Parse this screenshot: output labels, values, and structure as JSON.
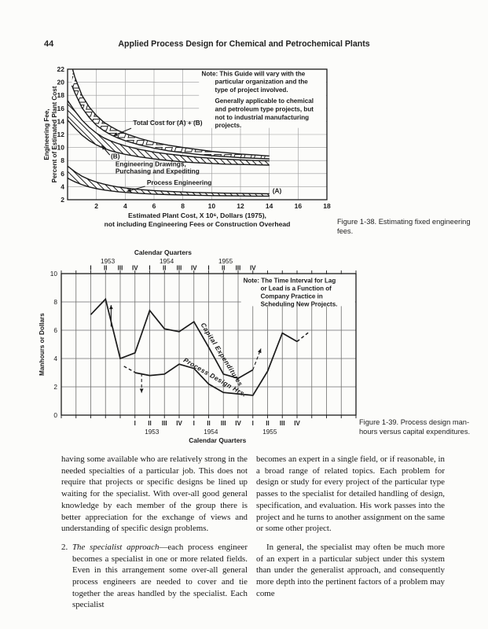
{
  "page": {
    "number": "44",
    "running_title": "Applied Process Design for Chemical and Petrochemical Plants"
  },
  "figures": {
    "fig138": {
      "caption": "Figure 1-38. Estimating fixed engineering fees."
    },
    "fig139": {
      "caption": "Figure 1-39. Process design man-hours versus capital expenditures."
    }
  },
  "body": {
    "left_paragraph": "having some available who are relatively strong in the needed specialties of a particular job. This does not require that projects or specific designs be lined up waiting for the specialist. With over-all good general knowledge by each member of the group there is better appreciation for the exchange of views and understanding of specific design problems.",
    "item2": {
      "marker": "2.",
      "lead": "The specialist approach",
      "rest": "—each process engineer becomes a specialist in one or more related fields. Even in this arrangement some over-all general process engineers are needed to cover and tie together the areas handled by the specialist. Each specialist"
    },
    "right_paragraph1": "becomes an expert in a single field, or if reasonable, in a broad range of related topics. Each problem for design or study for every project of the particular type passes to the specialist for detailed handling of design, specification, and evaluation. His work passes into the project and he turns to another assignment on the same or some other project.",
    "right_paragraph2": "In general, the specialist may often be much more of an expert in a particular subject under this system than under the generalist approach, and consequently more depth into the pertinent factors of a problem may come"
  },
  "chart_data": [
    {
      "id": "figure-1-38",
      "type": "line",
      "xlabel_lines": [
        "Estimated Plant Cost, X 10⁶, Dollars (1975),",
        "not including Engineering Fees or Construction Overhead"
      ],
      "ylabel_lines": [
        "Engineering Fee,",
        "Percent of Estimated Plant Cost"
      ],
      "xlim": [
        0,
        18
      ],
      "ylim": [
        2,
        22
      ],
      "xticks": [
        2,
        4,
        6,
        8,
        10,
        12,
        14,
        16,
        18
      ],
      "yticks": [
        2,
        4,
        6,
        8,
        10,
        12,
        14,
        16,
        18,
        20,
        22
      ],
      "note_lines": [
        {
          "t": "Note: This Guide will vary with the",
          "dx": 0
        },
        {
          "t": "particular organization and the",
          "dx": 17
        },
        {
          "t": "type of project involved.",
          "dx": 17
        },
        {
          "t": "Generally applicable to chemical",
          "dx": 17,
          "gap": 4
        },
        {
          "t": "and petroleum type projects, but",
          "dx": 17
        },
        {
          "t": "not to industrial manufacturing",
          "dx": 17
        },
        {
          "t": "projects.",
          "dx": 17
        }
      ],
      "bands": [
        {
          "name": "total-cost-a-plus-b",
          "hatch": "boxes",
          "upper": [
            [
              0.35,
              22
            ],
            [
              0.5,
              20.8
            ],
            [
              1,
              18.0
            ],
            [
              1.5,
              16.2
            ],
            [
              2,
              14.9
            ],
            [
              2.5,
              13.9
            ],
            [
              3,
              13.2
            ],
            [
              3.5,
              12.6
            ],
            [
              4,
              12.15
            ],
            [
              5,
              11.4
            ],
            [
              6,
              10.8
            ],
            [
              7,
              10.35
            ],
            [
              8,
              10.0
            ],
            [
              9,
              9.7
            ],
            [
              10,
              9.4
            ],
            [
              11,
              9.2
            ],
            [
              12,
              9.0
            ],
            [
              13,
              8.85
            ],
            [
              14,
              8.7
            ]
          ],
          "lower": [
            [
              0.3,
              19.5
            ],
            [
              0.5,
              18.4
            ],
            [
              1,
              16.1
            ],
            [
              1.5,
              14.6
            ],
            [
              2,
              13.4
            ],
            [
              2.5,
              12.6
            ],
            [
              3,
              11.95
            ],
            [
              3.5,
              11.45
            ],
            [
              4,
              11.05
            ],
            [
              5,
              10.4
            ],
            [
              6,
              9.9
            ],
            [
              7,
              9.5
            ],
            [
              8,
              9.2
            ],
            [
              9,
              8.95
            ],
            [
              10,
              8.75
            ],
            [
              11,
              8.6
            ],
            [
              12,
              8.45
            ],
            [
              13,
              8.35
            ],
            [
              14,
              8.25
            ]
          ]
        },
        {
          "name": "engineering-drawings-purchasing-expediting",
          "hatch": "diag",
          "upper": [
            [
              0,
              17.2
            ],
            [
              0.5,
              15.6
            ],
            [
              1,
              14.2
            ],
            [
              1.5,
              13.1
            ],
            [
              2,
              12.2
            ],
            [
              2.5,
              11.5
            ],
            [
              3,
              11.0
            ],
            [
              3.5,
              10.6
            ],
            [
              4,
              10.25
            ],
            [
              5,
              9.7
            ],
            [
              6,
              9.3
            ],
            [
              7,
              9.0
            ],
            [
              8,
              8.75
            ],
            [
              9,
              8.5
            ],
            [
              10,
              8.35
            ],
            [
              11,
              8.2
            ],
            [
              12,
              8.1
            ],
            [
              13,
              8.0
            ],
            [
              14,
              7.95
            ]
          ],
          "lower": [
            [
              0,
              14.2
            ],
            [
              0.5,
              13.0
            ],
            [
              1,
              11.9
            ],
            [
              1.5,
              11.05
            ],
            [
              2,
              10.4
            ],
            [
              2.5,
              9.9
            ],
            [
              3,
              9.5
            ],
            [
              3.5,
              9.2
            ],
            [
              4,
              8.95
            ],
            [
              5,
              8.55
            ],
            [
              6,
              8.25
            ],
            [
              7,
              8.0
            ],
            [
              8,
              7.8
            ],
            [
              9,
              7.65
            ],
            [
              10,
              7.55
            ],
            [
              11,
              7.45
            ],
            [
              12,
              7.4
            ],
            [
              13,
              7.35
            ],
            [
              14,
              7.3
            ]
          ]
        },
        {
          "name": "process-engineering",
          "hatch": "diag",
          "upper": [
            [
              0,
              7.15
            ],
            [
              0.5,
              6.3
            ],
            [
              1,
              5.6
            ],
            [
              1.5,
              5.1
            ],
            [
              2,
              4.7
            ],
            [
              2.5,
              4.4
            ],
            [
              3,
              4.15
            ],
            [
              3.5,
              3.95
            ],
            [
              4,
              3.8
            ],
            [
              5,
              3.55
            ],
            [
              6,
              3.4
            ],
            [
              7,
              3.28
            ],
            [
              8,
              3.18
            ],
            [
              9,
              3.1
            ],
            [
              10,
              3.05
            ],
            [
              11,
              3.0
            ],
            [
              12,
              2.97
            ],
            [
              13,
              2.94
            ],
            [
              14,
              2.92
            ]
          ],
          "lower": [
            [
              0,
              5.3
            ],
            [
              0.5,
              4.75
            ],
            [
              1,
              4.3
            ],
            [
              1.5,
              3.95
            ],
            [
              2,
              3.7
            ],
            [
              2.5,
              3.5
            ],
            [
              3,
              3.35
            ],
            [
              3.5,
              3.22
            ],
            [
              4,
              3.12
            ],
            [
              5,
              2.97
            ],
            [
              6,
              2.86
            ],
            [
              7,
              2.78
            ],
            [
              8,
              2.72
            ],
            [
              9,
              2.67
            ],
            [
              10,
              2.63
            ],
            [
              11,
              2.6
            ],
            [
              12,
              2.58
            ],
            [
              13,
              2.56
            ],
            [
              14,
              2.55
            ]
          ]
        }
      ],
      "annotations": [
        {
          "t": "Total Cost for (A) + (B)",
          "x": 4.55,
          "y": 13.45,
          "ax": 4.42,
          "ay": 12.95,
          "tx": 3.18,
          "ty": 11.8
        },
        {
          "t": "(B)",
          "x": 3.0,
          "y": 8.3,
          "ax": 2.93,
          "ay": 8.85,
          "tx": 2.36,
          "ty": 10.3
        },
        {
          "t": "Engineering Drawings,",
          "x": 3.32,
          "y": 7.1
        },
        {
          "t": "Purchasing and Expediting",
          "x": 3.32,
          "y": 6.05
        },
        {
          "t": "Process Engineering",
          "x": 5.5,
          "y": 4.3,
          "ax": 5.38,
          "ay": 4.05,
          "tx": 4.12,
          "ty": 3.28
        },
        {
          "t": "(A)",
          "x": 14.22,
          "y": 3.0
        }
      ]
    },
    {
      "id": "figure-1-39",
      "type": "line",
      "cols": 20,
      "ylim": [
        0,
        10
      ],
      "yticks": [
        0,
        2,
        4,
        6,
        8,
        10
      ],
      "ylabel": "Manhours or Dollars",
      "top_axis": {
        "title": "Calendar Quarters",
        "years": [
          "1953",
          "1954",
          "1955"
        ],
        "quarters": [
          "I",
          "II",
          "III",
          "IV",
          "I",
          "II",
          "III",
          "IV",
          "I",
          "II",
          "III",
          "IV"
        ],
        "start_col": 2
      },
      "bottom_axis": {
        "title": "Calendar Quarters",
        "years": [
          "1953",
          "1954",
          "1955"
        ],
        "quarters": [
          "I",
          "II",
          "III",
          "IV",
          "I",
          "II",
          "III",
          "IV",
          "I",
          "II",
          "III",
          "IV"
        ],
        "start_col": 5
      },
      "note_lines": [
        {
          "t": "Note: The Time Interval for Lag",
          "dx": 0
        },
        {
          "t": "or Lead is a Function of",
          "dx": 22
        },
        {
          "t": "Company Practice in",
          "dx": 22
        },
        {
          "t": "Scheduling New Projects.",
          "dx": 22
        }
      ],
      "series": [
        {
          "name": "Capital Expenditures",
          "points": [
            [
              2,
              7.1
            ],
            [
              3,
              8.2
            ],
            [
              4,
              4.0
            ],
            [
              5,
              4.4
            ],
            [
              6,
              7.4
            ],
            [
              7,
              6.1
            ],
            [
              8,
              5.9
            ],
            [
              9,
              6.6
            ],
            [
              10,
              4.8
            ],
            [
              11,
              2.9
            ],
            [
              12,
              2.6
            ],
            [
              13,
              3.2
            ]
          ],
          "tail": [
            [
              13,
              3.2
            ],
            [
              13.55,
              4.7
            ]
          ],
          "tail_arrow": true,
          "label": {
            "x": 9.45,
            "y": 6.4,
            "rot": 58
          }
        },
        {
          "name": "Process Design Hrs.",
          "lead": [
            [
              4.25,
              3.45
            ],
            [
              5,
              3.02
            ]
          ],
          "points": [
            [
              5,
              3.0
            ],
            [
              6,
              2.8
            ],
            [
              7,
              2.9
            ],
            [
              8,
              3.6
            ],
            [
              9,
              3.3
            ],
            [
              10,
              2.2
            ],
            [
              11,
              1.6
            ],
            [
              12,
              1.5
            ],
            [
              13,
              1.4
            ],
            [
              14,
              3.1
            ],
            [
              15,
              5.8
            ],
            [
              16,
              5.2
            ]
          ],
          "tail": [
            [
              16,
              5.2
            ],
            [
              16.85,
              5.9
            ]
          ],
          "tail_arrow": false,
          "label": {
            "x": 8.25,
            "y": 3.8,
            "rot": 30
          }
        }
      ],
      "arrows": [
        {
          "x": 3.38,
          "y1": 6.25,
          "y2": 7.78,
          "dash": false
        },
        {
          "x": 5.45,
          "y1": 2.95,
          "y2": 1.58,
          "dash": true
        }
      ]
    }
  ]
}
